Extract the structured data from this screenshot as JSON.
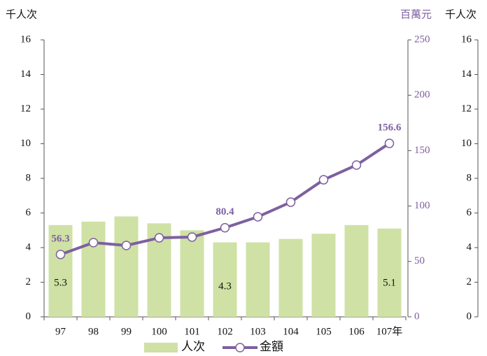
{
  "chart_data": [
    {
      "type": "bar_line",
      "y_label": "千人次",
      "y2_label": "百萬元",
      "categories": [
        "97",
        "98",
        "99",
        "100",
        "101",
        "102",
        "103",
        "104",
        "105",
        "106",
        "107年"
      ],
      "series": [
        {
          "name": "人次",
          "type": "bar",
          "color": "#cfe1a5",
          "values": [
            5.3,
            5.5,
            5.8,
            5.4,
            5.0,
            4.3,
            4.3,
            4.5,
            4.8,
            5.3,
            5.1
          ],
          "data_labels": [
            0,
            5,
            10
          ]
        },
        {
          "name": "金額",
          "type": "line",
          "axis": "y2",
          "color": "#7e60a0",
          "values": [
            56.3,
            67,
            64.4,
            71.3,
            72,
            80.4,
            90.3,
            103.5,
            123.7,
            137,
            156.6
          ],
          "data_labels": [
            0,
            5,
            10
          ]
        }
      ],
      "ylim": [
        0,
        16
      ],
      "yticks": [
        0,
        2,
        4,
        6,
        8,
        10,
        12,
        14,
        16
      ],
      "y2lim": [
        0,
        250
      ],
      "y2ticks": [
        0,
        50,
        100,
        150,
        200,
        250
      ],
      "y2_color": "#7e60a0",
      "legend": "bottom"
    },
    {
      "type": "axis_only",
      "y_label": "千人次",
      "ylim": [
        0,
        16
      ],
      "yticks": [
        0,
        2,
        4,
        6,
        8,
        10,
        12,
        14,
        16
      ]
    }
  ]
}
